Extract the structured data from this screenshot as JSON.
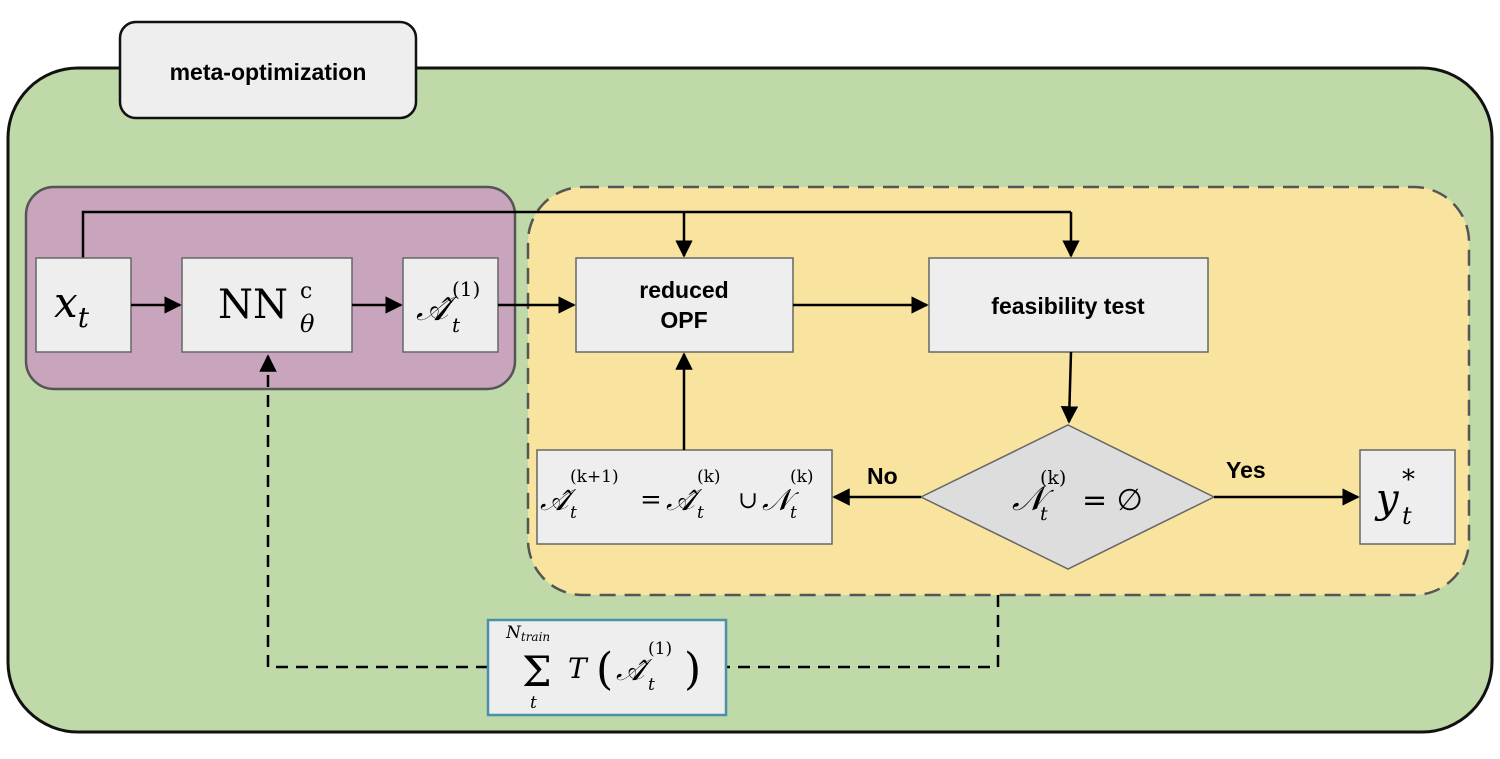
{
  "meta_label": "meta-optimization",
  "nodes": {
    "input": {
      "base": "x",
      "sub": "t"
    },
    "network": {
      "base": "NN",
      "sup": "c",
      "sub": "θ"
    },
    "init_set": {
      "base": "𝒜̂",
      "sup": "(1)",
      "sub": "t"
    },
    "reduced_opf": {
      "line1": "reduced",
      "line2": "OPF"
    },
    "feasibility": {
      "label": "feasibility test"
    },
    "decision": {
      "lhs": "𝒩",
      "sup": "(k)",
      "sub": "t",
      "op": "= ∅"
    },
    "update": {
      "a": "𝒜̂",
      "a_sup": "(k+1)",
      "a_sub": "t",
      "eq": "=",
      "b": "𝒜̂",
      "b_sup": "(k)",
      "b_sub": "t",
      "union": "∪",
      "c": "𝒩",
      "c_sup": "(k)",
      "c_sub": "t"
    },
    "output": {
      "base": "y",
      "sup": "*",
      "sub": "t"
    },
    "objective": {
      "sigma": "Σ",
      "sigma_top": "N",
      "sigma_top_sub": "train",
      "sigma_bot": "t",
      "fn": "T",
      "arg": "𝒜̂",
      "arg_sup": "(1)",
      "arg_sub": "t"
    }
  },
  "edges": {
    "no_label": "No",
    "yes_label": "Yes"
  },
  "colors": {
    "outer_fill": "#c0d9a8",
    "nn_fill": "#c8a5bd",
    "loop_fill": "#f8e49e",
    "box_fill": "#eeeeee",
    "objective_border": "#4a90a8"
  }
}
